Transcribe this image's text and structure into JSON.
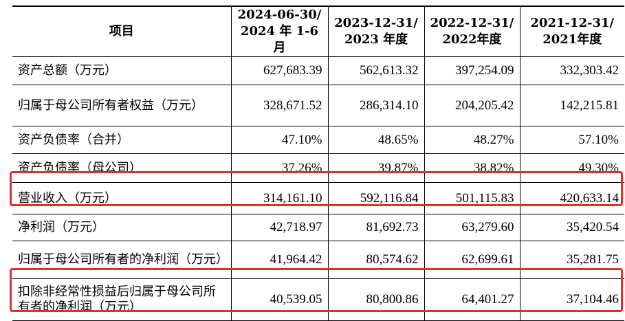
{
  "table": {
    "headers": [
      "项目",
      "2024-06-30/\n2024 年 1-6 月",
      "2023-12-31/\n2023 年度",
      "2022-12-31/\n2022年度",
      "2021-12-31/\n2021年度"
    ],
    "rows": [
      {
        "label": "资产总额（万元）",
        "values": [
          "627,683.39",
          "562,613.32",
          "397,254.09",
          "332,303.42"
        ]
      },
      {
        "label": "归属于母公司所有者权益（万元）",
        "values": [
          "328,671.52",
          "286,314.10",
          "204,205.42",
          "142,215.81"
        ]
      },
      {
        "label": "资产负债率（合并）",
        "values": [
          "47.10%",
          "48.65%",
          "48.27%",
          "57.10%"
        ]
      },
      {
        "label": "资产负债率（母公司）",
        "values": [
          "37.26%",
          "39.87%",
          "38.82%",
          "49.30%"
        ]
      },
      {
        "label": "营业收入（万元）",
        "values": [
          "314,161.10",
          "592,116.84",
          "501,115.83",
          "420,633.14"
        ]
      },
      {
        "label": "净利润（万元）",
        "values": [
          "42,718.97",
          "81,692.73",
          "63,279.60",
          "35,420.54"
        ]
      },
      {
        "label": "归属于母公司所有者的净利润（万元）",
        "values": [
          "41,964.42",
          "80,574.62",
          "62,699.61",
          "35,281.75"
        ]
      },
      {
        "label": "扣除非经常性损益后归属于母公司所有者的净利润（万元）",
        "values": [
          "40,539.05",
          "80,800.86",
          "64,401.27",
          "37,104.46"
        ]
      }
    ]
  },
  "highlight_color": "#e0302e"
}
